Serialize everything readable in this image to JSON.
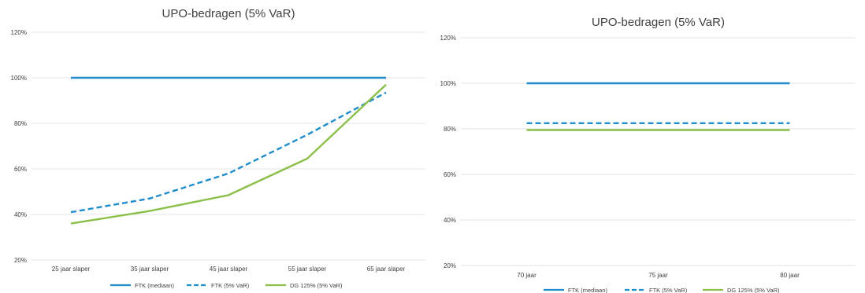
{
  "chart_data": [
    {
      "type": "line",
      "title": "UPO-bedragen (5% VaR)",
      "xlabel": "",
      "ylabel": "",
      "categories": [
        "25 jaar slaper",
        "35 jaar slaper",
        "45 jaar slaper",
        "55 jaar slaper",
        "65 jaar slaper"
      ],
      "ylim": [
        0.2,
        1.2
      ],
      "yticks": [
        "20%",
        "40%",
        "60%",
        "80%",
        "100%",
        "120%"
      ],
      "grid": true,
      "legend_position": "bottom",
      "series": [
        {
          "name": "FTK (mediaan)",
          "values": [
            1.0,
            1.0,
            1.0,
            1.0,
            1.0
          ],
          "color": "#1f8dcc",
          "dash": "solid"
        },
        {
          "name": "FTK (5% VaR)",
          "values": [
            0.41,
            0.47,
            0.58,
            0.75,
            0.935
          ],
          "color": "#1f8dcc",
          "dash": "dashed"
        },
        {
          "name": "DG 125% (5% VaR)",
          "values": [
            0.36,
            0.415,
            0.485,
            0.645,
            0.97
          ],
          "color": "#8cbf4a",
          "dash": "solid"
        }
      ]
    },
    {
      "type": "line",
      "title": "UPO-bedragen (5% VaR)",
      "xlabel": "",
      "ylabel": "",
      "categories": [
        "70 jaar",
        "75 jaar",
        "80 jaar"
      ],
      "ylim": [
        0.2,
        1.2
      ],
      "yticks": [
        "20%",
        "40%",
        "60%",
        "80%",
        "100%",
        "120%"
      ],
      "grid": true,
      "legend_position": "bottom",
      "series": [
        {
          "name": "FTK (mediaan)",
          "values": [
            1.0,
            1.0,
            1.0
          ],
          "color": "#1f8dcc",
          "dash": "solid"
        },
        {
          "name": "FTK (5% VaR)",
          "values": [
            0.825,
            0.825,
            0.825
          ],
          "color": "#1f8dcc",
          "dash": "dashed"
        },
        {
          "name": "DG 125% (5% VaR)",
          "values": [
            0.795,
            0.795,
            0.795
          ],
          "color": "#8cbf4a",
          "dash": "solid"
        }
      ]
    }
  ]
}
